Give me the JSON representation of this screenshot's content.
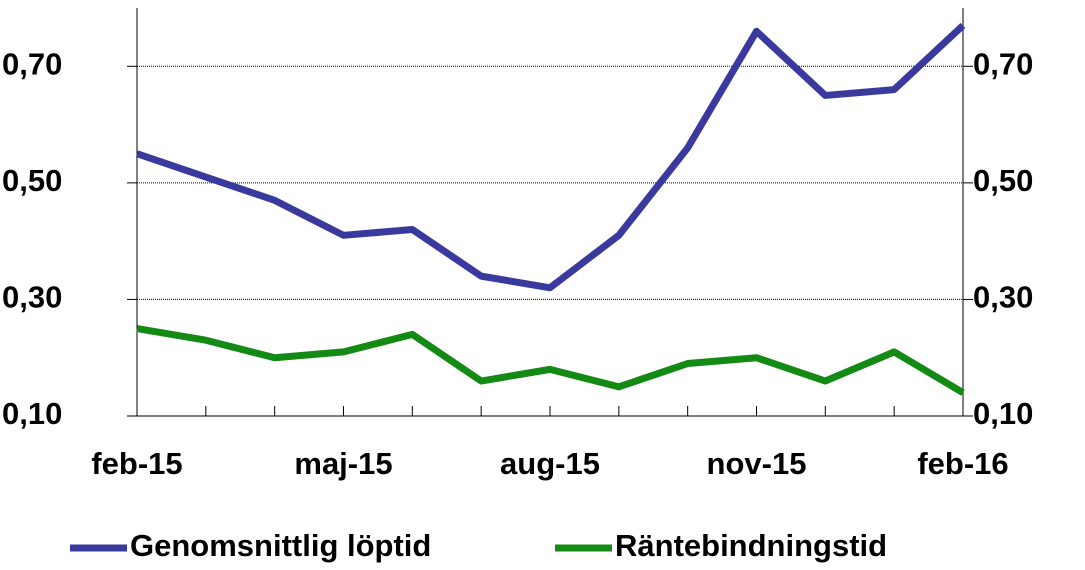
{
  "chart_data": {
    "type": "line",
    "categories": [
      "feb-15",
      null,
      null,
      "maj-15",
      null,
      null,
      "aug-15",
      null,
      null,
      "nov-15",
      null,
      null,
      "feb-16"
    ],
    "series": [
      {
        "name": "Genomsnittlig löptid",
        "color": "#3a3a9e",
        "values": [
          0.55,
          0.51,
          0.47,
          0.41,
          0.42,
          0.34,
          0.32,
          0.41,
          0.56,
          0.76,
          0.65,
          0.66,
          0.77
        ]
      },
      {
        "name": "Räntebindningstid",
        "color": "#138a13",
        "values": [
          0.25,
          0.23,
          0.2,
          0.21,
          0.24,
          0.16,
          0.18,
          0.15,
          0.19,
          0.2,
          0.16,
          0.21,
          0.14
        ]
      }
    ],
    "ylim": [
      0.1,
      0.8
    ],
    "yticks": [
      {
        "value": 0.1,
        "label": "0,10"
      },
      {
        "value": 0.3,
        "label": "0,30"
      },
      {
        "value": 0.5,
        "label": "0,50"
      },
      {
        "value": 0.7,
        "label": "0,70"
      }
    ],
    "grid": true,
    "legend": "bottom"
  }
}
